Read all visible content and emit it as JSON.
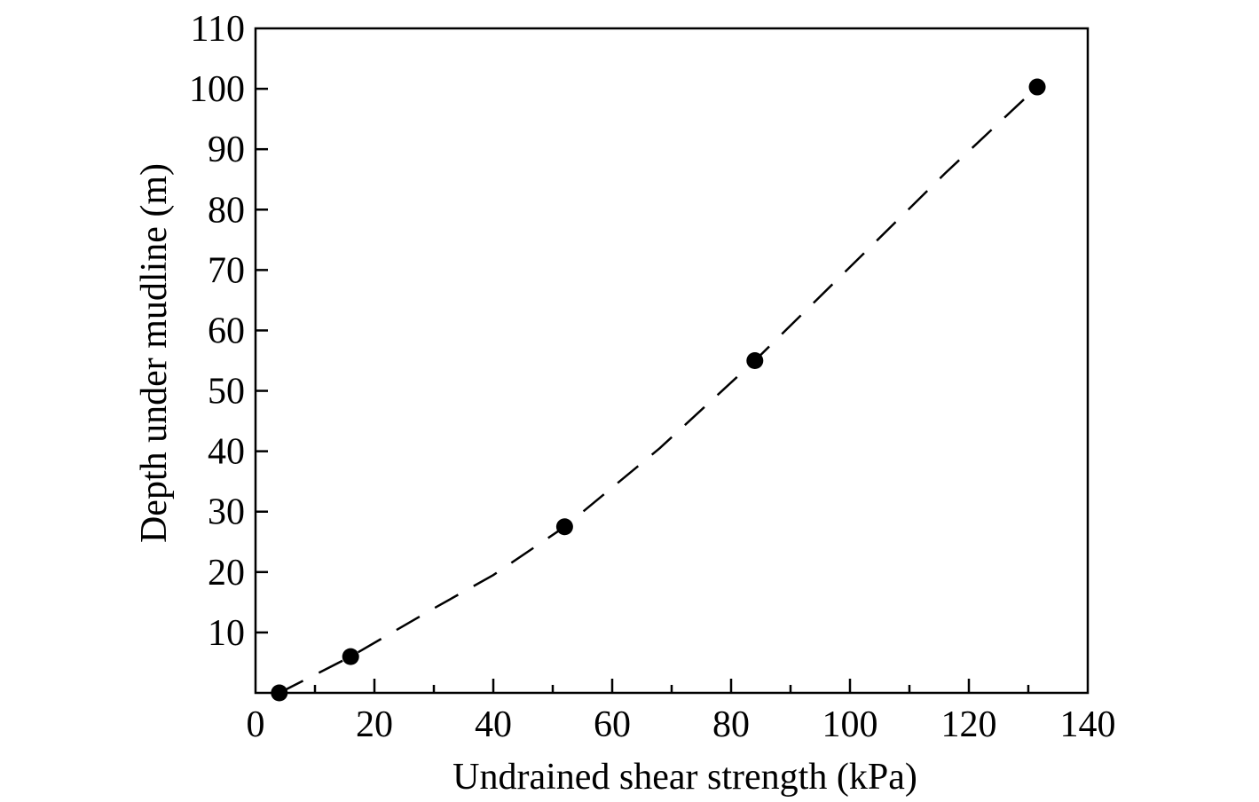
{
  "chart_data": {
    "type": "scatter",
    "title": "",
    "xlabel": "Undrained shear strength (kPa)",
    "ylabel": "Depth under mudline (m)",
    "xlim": [
      0,
      140
    ],
    "ylim": [
      0,
      110
    ],
    "x_ticks": [
      0,
      20,
      40,
      60,
      80,
      100,
      120,
      140
    ],
    "x_tick_labels": [
      "0",
      "20",
      "40",
      "60",
      "80",
      "100",
      "120",
      "140"
    ],
    "x_minor_ticks": [
      10,
      30,
      50,
      70,
      90,
      110,
      130
    ],
    "y_ticks": [
      10,
      20,
      30,
      40,
      50,
      60,
      70,
      80,
      90,
      100,
      110
    ],
    "y_tick_labels": [
      "10",
      "20",
      "30",
      "40",
      "50",
      "60",
      "70",
      "80",
      "90",
      "100",
      "110"
    ],
    "grid": false,
    "legend": "none",
    "series": [
      {
        "style": "markers",
        "color": "#000000",
        "points": [
          {
            "x": 4,
            "y": 0
          },
          {
            "x": 16,
            "y": 6
          },
          {
            "x": 52,
            "y": 27.5
          },
          {
            "x": 84,
            "y": 55
          },
          {
            "x": 131.5,
            "y": 100.3
          }
        ]
      },
      {
        "style": "dashed-line",
        "color": "#000000",
        "points": [
          {
            "x": 4,
            "y": 0
          },
          {
            "x": 16,
            "y": 6
          },
          {
            "x": 30,
            "y": 14
          },
          {
            "x": 40,
            "y": 19.5
          },
          {
            "x": 52,
            "y": 27.5
          },
          {
            "x": 68,
            "y": 40.5
          },
          {
            "x": 84,
            "y": 55
          },
          {
            "x": 100,
            "y": 70.5
          },
          {
            "x": 116,
            "y": 86
          },
          {
            "x": 131.5,
            "y": 100.3
          }
        ]
      }
    ]
  }
}
